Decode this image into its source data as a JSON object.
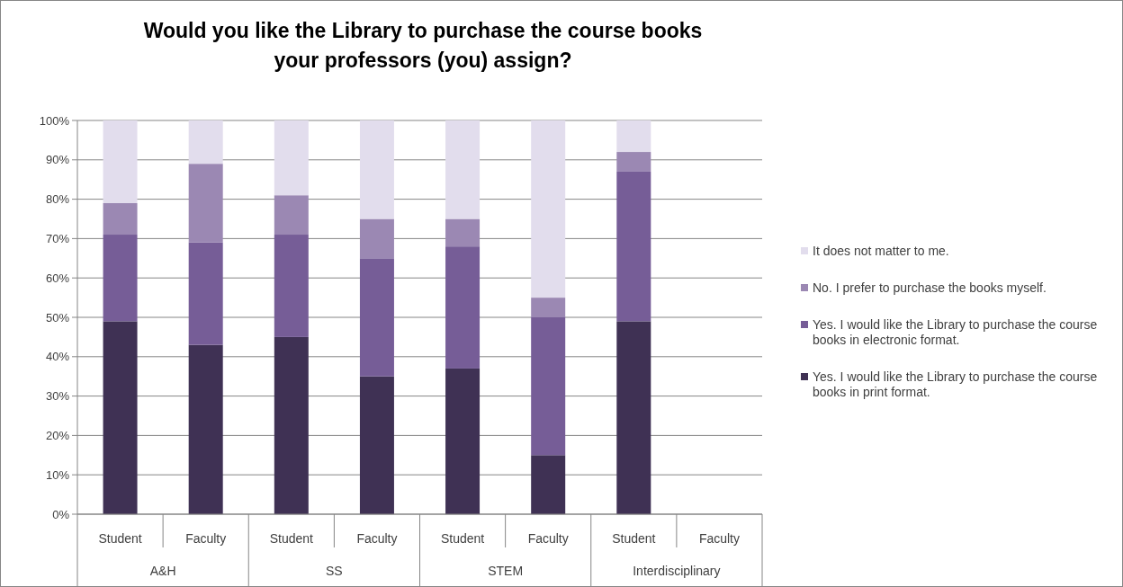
{
  "chart_data": {
    "type": "bar",
    "stacked": true,
    "title": "Would you like the Library to purchase the course books your professors (you) assign?",
    "categories": [
      "Student",
      "Faculty",
      "Student",
      "Faculty",
      "Student",
      "Faculty",
      "Student",
      "Faculty"
    ],
    "series": [
      {
        "name": "Yes. I would like the Library to purchase the course books in print format.",
        "color": "#3f3154",
        "values": [
          49,
          43,
          45,
          35,
          37,
          15,
          49,
          null
        ]
      },
      {
        "name": "Yes. I would like the Library to purchase the course books in electronic format.",
        "color": "#765d97",
        "values": [
          22,
          26,
          26,
          30,
          31,
          35,
          38,
          null
        ]
      },
      {
        "name": "No. I prefer to purchase the books myself.",
        "color": "#9b88b3",
        "values": [
          8,
          20,
          10,
          10,
          7,
          5,
          5,
          null
        ]
      },
      {
        "name": "It does not matter to me.",
        "color": "#e2dded",
        "values": [
          21,
          11,
          19,
          25,
          25,
          45,
          8,
          null
        ]
      }
    ],
    "annotations": [
      "A&H",
      "SS",
      "STEM",
      "Interdisciplinary"
    ],
    "ylim": [
      0,
      100
    ],
    "yticks": [
      {
        "value": 0,
        "label": "0%"
      },
      {
        "value": 10,
        "label": "10%"
      },
      {
        "value": 20,
        "label": "20%"
      },
      {
        "value": 30,
        "label": "30%"
      },
      {
        "value": 40,
        "label": "40%"
      },
      {
        "value": 50,
        "label": "50%"
      },
      {
        "value": 60,
        "label": "60%"
      },
      {
        "value": 70,
        "label": "70%"
      },
      {
        "value": 80,
        "label": "80%"
      },
      {
        "value": 90,
        "label": "90%"
      },
      {
        "value": 100,
        "label": "100%"
      }
    ],
    "grid": "y",
    "legend": "right"
  }
}
